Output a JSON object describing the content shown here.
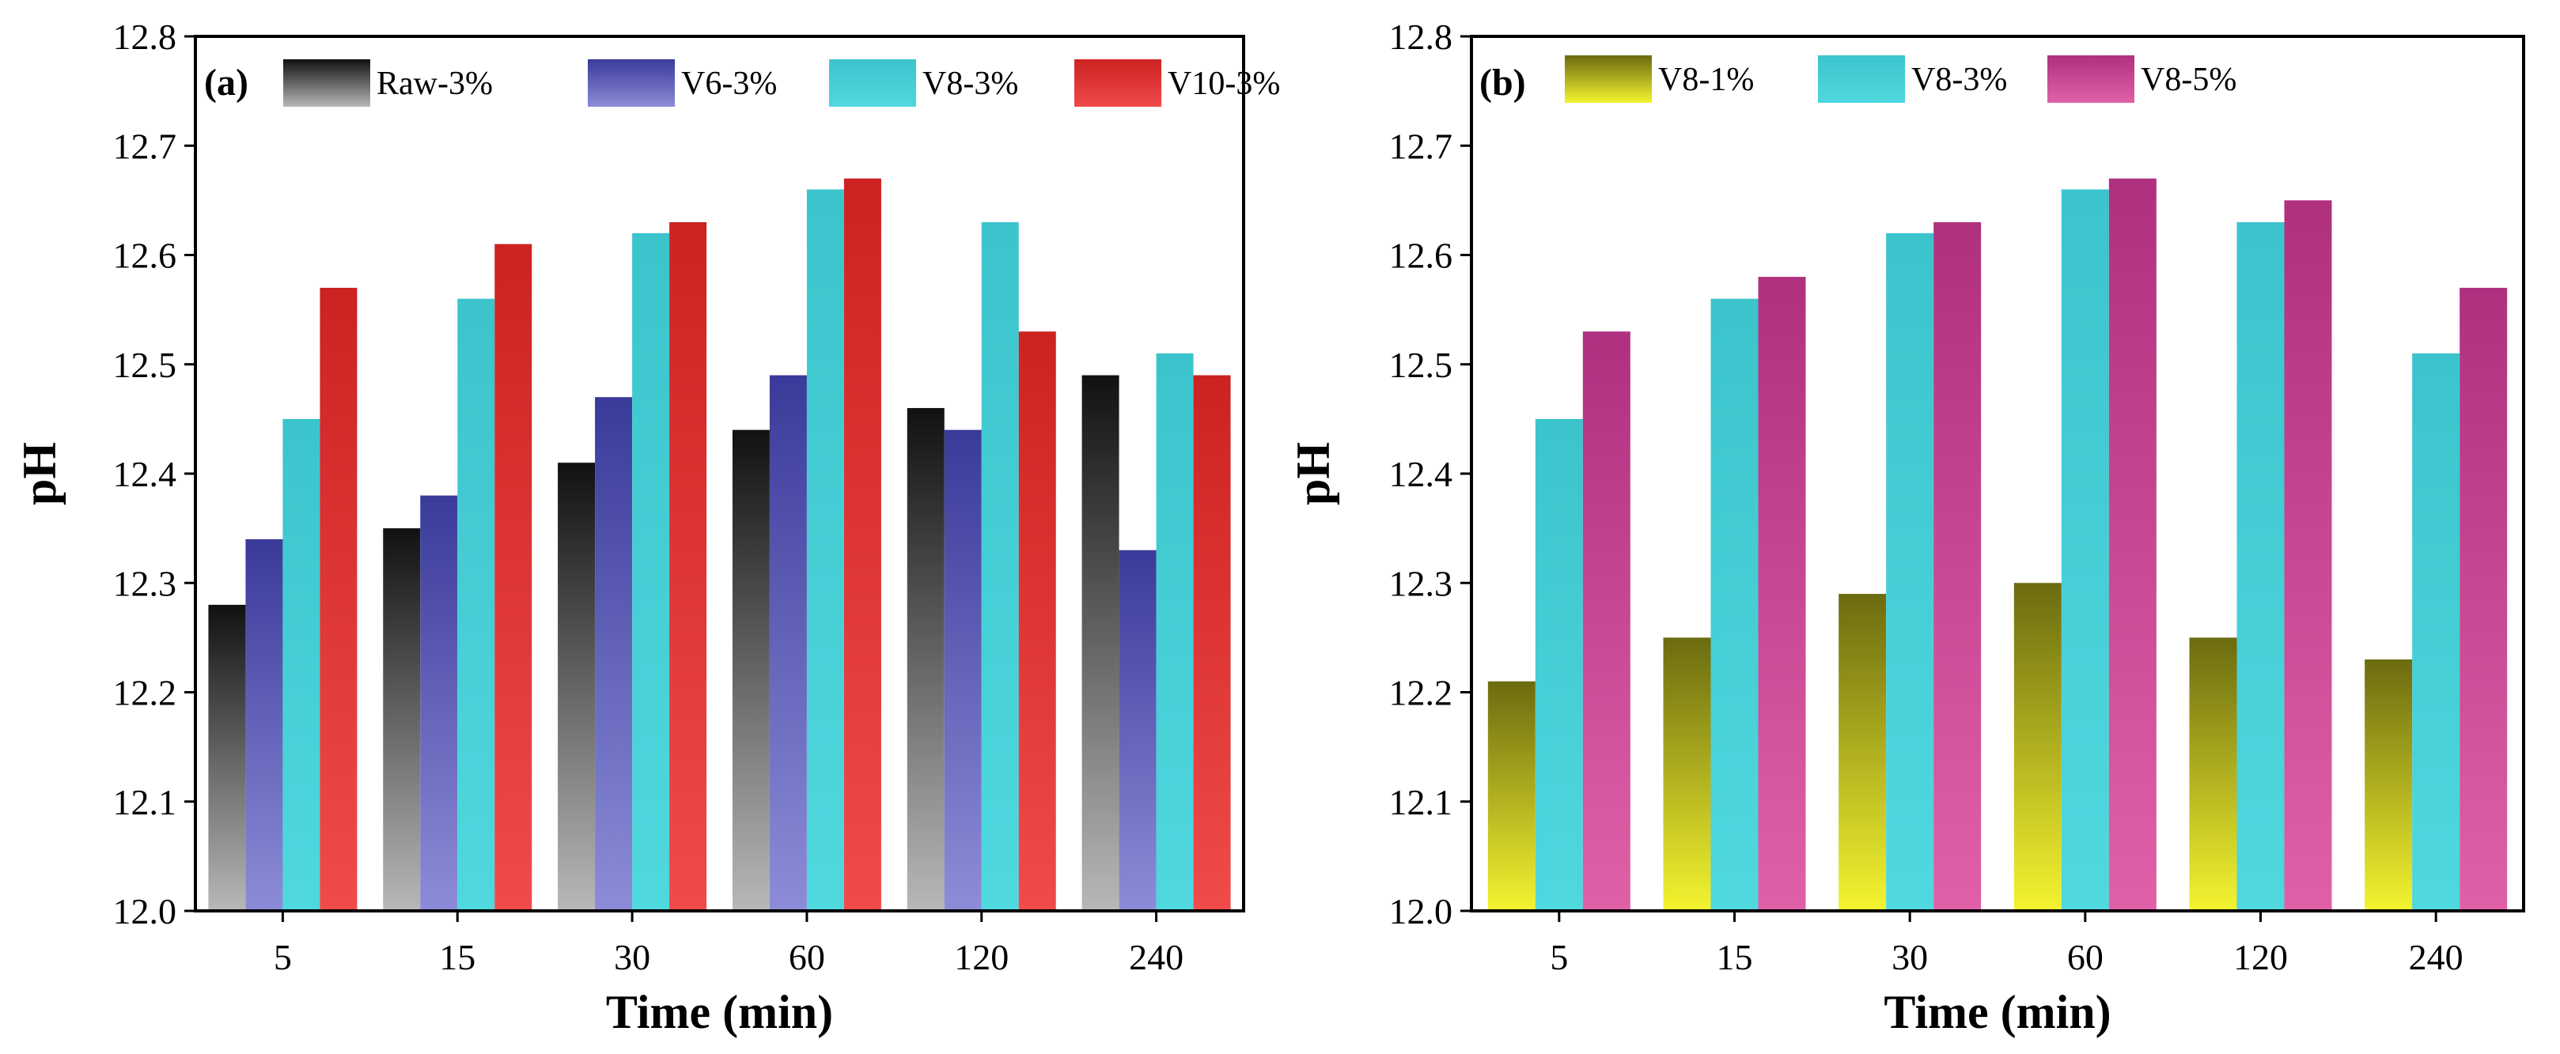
{
  "chart_data": [
    {
      "type": "bar",
      "panel_label": "(a)",
      "title": "",
      "xlabel": "Time (min)",
      "ylabel": "pH",
      "ylim": [
        12.0,
        12.8
      ],
      "yticks": [
        "12.0",
        "12.1",
        "12.2",
        "12.3",
        "12.4",
        "12.5",
        "12.6",
        "12.7",
        "12.8"
      ],
      "grid": false,
      "legend_position": "top",
      "categories": [
        "5",
        "15",
        "30",
        "60",
        "120",
        "240"
      ],
      "series": [
        {
          "name": "Raw-3%",
          "values": [
            12.28,
            12.35,
            12.41,
            12.44,
            12.46,
            12.49
          ],
          "color_top": "#111111",
          "color_bottom": "#b8b8b8"
        },
        {
          "name": "V6-3%",
          "values": [
            12.34,
            12.38,
            12.47,
            12.49,
            12.44,
            12.33
          ],
          "color_top": "#3a3a9a",
          "color_bottom": "#8c8cd8"
        },
        {
          "name": "V8-3%",
          "values": [
            12.45,
            12.56,
            12.62,
            12.66,
            12.63,
            12.51
          ],
          "color_top": "#3cc4cc",
          "color_bottom": "#4fd8de"
        },
        {
          "name": "V10-3%",
          "values": [
            12.57,
            12.61,
            12.63,
            12.67,
            12.53,
            12.49
          ],
          "color_top": "#cc2222",
          "color_bottom": "#f04a4a"
        }
      ]
    },
    {
      "type": "bar",
      "panel_label": "(b)",
      "title": "",
      "xlabel": "Time (min)",
      "ylabel": "pH",
      "ylim": [
        12.0,
        12.8
      ],
      "yticks": [
        "12.0",
        "12.1",
        "12.2",
        "12.3",
        "12.4",
        "12.5",
        "12.6",
        "12.7",
        "12.8"
      ],
      "grid": false,
      "legend_position": "top",
      "categories": [
        "5",
        "15",
        "30",
        "60",
        "120",
        "240"
      ],
      "series": [
        {
          "name": "V8-1%",
          "values": [
            12.21,
            12.25,
            12.29,
            12.3,
            12.25,
            12.23
          ],
          "color_top": "#6b6b10",
          "color_bottom": "#f4f430"
        },
        {
          "name": "V8-3%",
          "values": [
            12.45,
            12.56,
            12.62,
            12.66,
            12.63,
            12.51
          ],
          "color_top": "#3cc4cc",
          "color_bottom": "#4fd8de"
        },
        {
          "name": "V8-5%",
          "values": [
            12.53,
            12.58,
            12.63,
            12.67,
            12.65,
            12.57
          ],
          "color_top": "#b03080",
          "color_bottom": "#e060a8"
        }
      ]
    }
  ]
}
